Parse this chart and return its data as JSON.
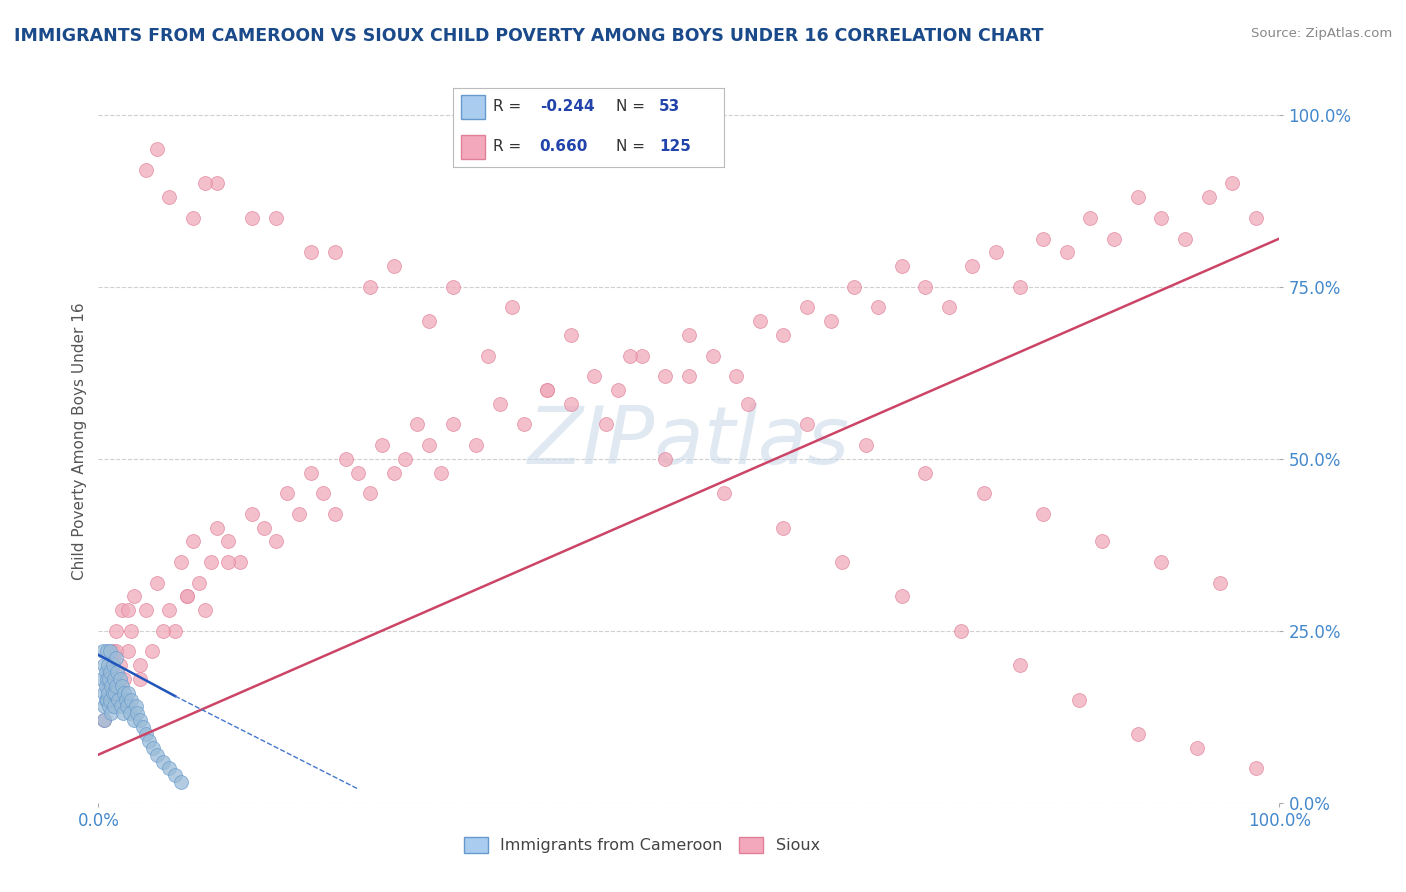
{
  "title": "IMMIGRANTS FROM CAMEROON VS SIOUX CHILD POVERTY AMONG BOYS UNDER 16 CORRELATION CHART",
  "source": "Source: ZipAtlas.com",
  "ylabel": "Child Poverty Among Boys Under 16",
  "ytick_labels": [
    "0.0%",
    "25.0%",
    "50.0%",
    "75.0%",
    "100.0%"
  ],
  "ytick_values": [
    0.0,
    0.25,
    0.5,
    0.75,
    1.0
  ],
  "xlim": [
    0.0,
    1.0
  ],
  "ylim": [
    0.0,
    1.05
  ],
  "background_color": "#ffffff",
  "grid_color": "#d0d0d0",
  "title_color": "#1a4a8a",
  "axis_label_color": "#4488cc",
  "scatter_blue_color": "#9abcd8",
  "scatter_pink_color": "#f0aaba",
  "scatter_blue_edge": "#6699cc",
  "scatter_pink_edge": "#e08098",
  "blue_line_solid": {
    "x": [
      0.0,
      0.065
    ],
    "y": [
      0.215,
      0.155
    ]
  },
  "blue_line_dashed": {
    "x": [
      0.065,
      0.22
    ],
    "y": [
      0.155,
      0.02
    ]
  },
  "pink_line": {
    "x": [
      0.0,
      1.0
    ],
    "y": [
      0.07,
      0.82
    ]
  },
  "blue_points_x": [
    0.003,
    0.004,
    0.005,
    0.005,
    0.005,
    0.005,
    0.006,
    0.006,
    0.006,
    0.007,
    0.007,
    0.007,
    0.008,
    0.008,
    0.009,
    0.009,
    0.01,
    0.01,
    0.01,
    0.011,
    0.011,
    0.012,
    0.012,
    0.013,
    0.013,
    0.014,
    0.015,
    0.015,
    0.016,
    0.017,
    0.018,
    0.019,
    0.02,
    0.021,
    0.022,
    0.023,
    0.024,
    0.025,
    0.027,
    0.028,
    0.03,
    0.032,
    0.033,
    0.035,
    0.038,
    0.04,
    0.043,
    0.046,
    0.05,
    0.055,
    0.06,
    0.065,
    0.07
  ],
  "blue_points_y": [
    0.18,
    0.22,
    0.2,
    0.16,
    0.14,
    0.12,
    0.19,
    0.17,
    0.15,
    0.22,
    0.18,
    0.15,
    0.2,
    0.16,
    0.18,
    0.14,
    0.22,
    0.19,
    0.15,
    0.17,
    0.13,
    0.2,
    0.16,
    0.18,
    0.14,
    0.16,
    0.21,
    0.17,
    0.19,
    0.15,
    0.18,
    0.14,
    0.17,
    0.13,
    0.16,
    0.15,
    0.14,
    0.16,
    0.13,
    0.15,
    0.12,
    0.14,
    0.13,
    0.12,
    0.11,
    0.1,
    0.09,
    0.08,
    0.07,
    0.06,
    0.05,
    0.04,
    0.03
  ],
  "pink_points_x": [
    0.005,
    0.008,
    0.01,
    0.012,
    0.015,
    0.018,
    0.02,
    0.022,
    0.025,
    0.028,
    0.03,
    0.035,
    0.04,
    0.045,
    0.05,
    0.06,
    0.065,
    0.07,
    0.075,
    0.08,
    0.085,
    0.09,
    0.095,
    0.1,
    0.11,
    0.12,
    0.13,
    0.14,
    0.15,
    0.16,
    0.17,
    0.18,
    0.19,
    0.2,
    0.21,
    0.22,
    0.23,
    0.24,
    0.25,
    0.26,
    0.27,
    0.28,
    0.29,
    0.3,
    0.32,
    0.34,
    0.36,
    0.38,
    0.4,
    0.42,
    0.44,
    0.46,
    0.48,
    0.5,
    0.52,
    0.54,
    0.56,
    0.58,
    0.6,
    0.62,
    0.64,
    0.66,
    0.68,
    0.7,
    0.72,
    0.74,
    0.76,
    0.78,
    0.8,
    0.82,
    0.84,
    0.86,
    0.88,
    0.9,
    0.92,
    0.94,
    0.96,
    0.98,
    0.04,
    0.06,
    0.08,
    0.1,
    0.15,
    0.2,
    0.25,
    0.3,
    0.35,
    0.4,
    0.45,
    0.5,
    0.55,
    0.6,
    0.65,
    0.7,
    0.75,
    0.8,
    0.85,
    0.9,
    0.95,
    0.05,
    0.09,
    0.13,
    0.18,
    0.23,
    0.28,
    0.33,
    0.38,
    0.43,
    0.48,
    0.53,
    0.58,
    0.63,
    0.68,
    0.73,
    0.78,
    0.83,
    0.88,
    0.93,
    0.98,
    0.015,
    0.025,
    0.035,
    0.055,
    0.075,
    0.11
  ],
  "pink_points_y": [
    0.12,
    0.18,
    0.15,
    0.22,
    0.25,
    0.2,
    0.28,
    0.18,
    0.22,
    0.25,
    0.3,
    0.2,
    0.28,
    0.22,
    0.32,
    0.28,
    0.25,
    0.35,
    0.3,
    0.38,
    0.32,
    0.28,
    0.35,
    0.4,
    0.38,
    0.35,
    0.42,
    0.4,
    0.38,
    0.45,
    0.42,
    0.48,
    0.45,
    0.42,
    0.5,
    0.48,
    0.45,
    0.52,
    0.48,
    0.5,
    0.55,
    0.52,
    0.48,
    0.55,
    0.52,
    0.58,
    0.55,
    0.6,
    0.58,
    0.62,
    0.6,
    0.65,
    0.62,
    0.68,
    0.65,
    0.62,
    0.7,
    0.68,
    0.72,
    0.7,
    0.75,
    0.72,
    0.78,
    0.75,
    0.72,
    0.78,
    0.8,
    0.75,
    0.82,
    0.8,
    0.85,
    0.82,
    0.88,
    0.85,
    0.82,
    0.88,
    0.9,
    0.85,
    0.92,
    0.88,
    0.85,
    0.9,
    0.85,
    0.8,
    0.78,
    0.75,
    0.72,
    0.68,
    0.65,
    0.62,
    0.58,
    0.55,
    0.52,
    0.48,
    0.45,
    0.42,
    0.38,
    0.35,
    0.32,
    0.95,
    0.9,
    0.85,
    0.8,
    0.75,
    0.7,
    0.65,
    0.6,
    0.55,
    0.5,
    0.45,
    0.4,
    0.35,
    0.3,
    0.25,
    0.2,
    0.15,
    0.1,
    0.08,
    0.05,
    0.22,
    0.28,
    0.18,
    0.25,
    0.3,
    0.35
  ],
  "watermark_text": "ZIPatlas",
  "watermark_color": "#c8d8e8",
  "legend_R1": "-0.244",
  "legend_N1": "53",
  "legend_R2": "0.660",
  "legend_N2": "125",
  "legend_color1": "#aaccee",
  "legend_color2": "#f4a8bc",
  "legend_text_color": "#2244aa"
}
